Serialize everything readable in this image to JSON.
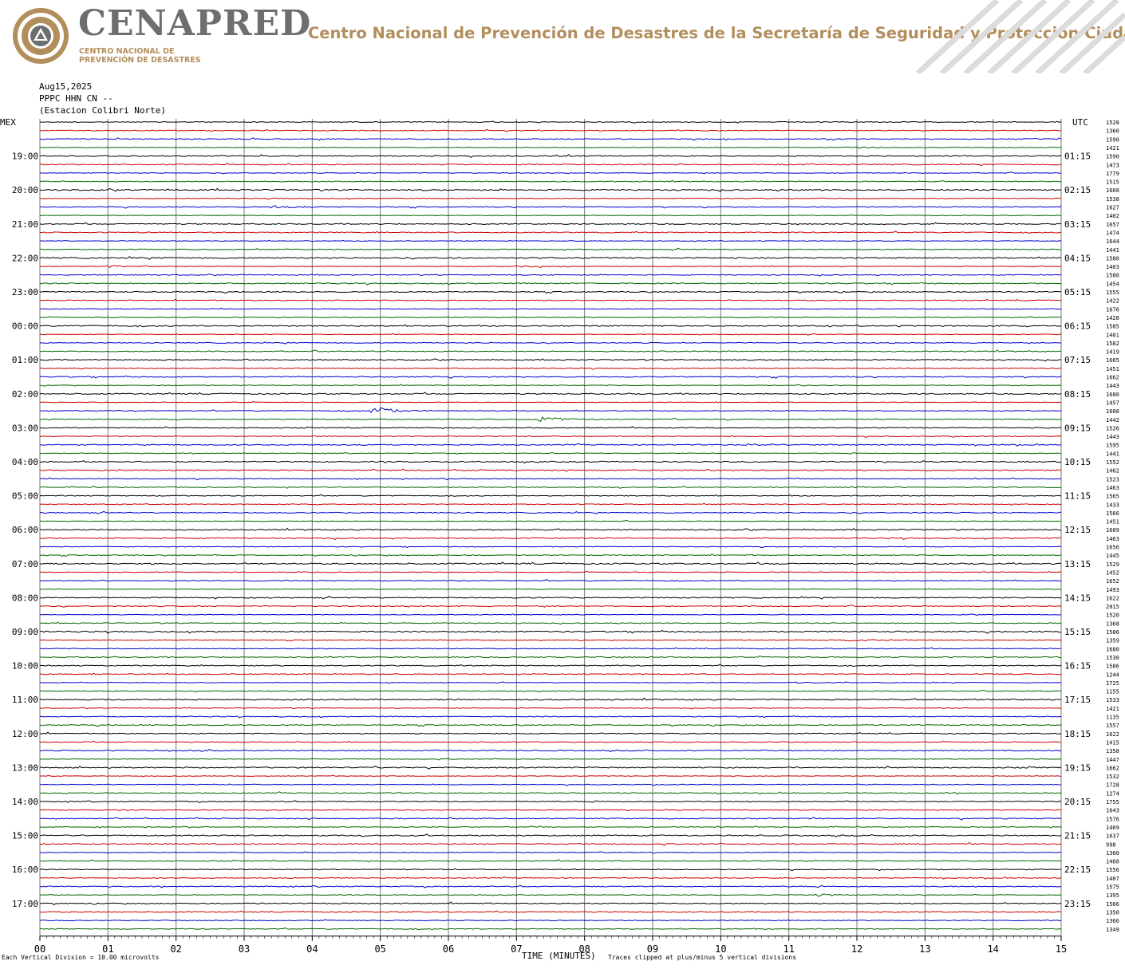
{
  "header": {
    "brand": "CENAPRED",
    "brand_sub_line1": "CENTRO NACIONAL DE",
    "brand_sub_line2": "PREVENCIÓN DE DESASTRES",
    "title": "Centro Nacional de Prevención de Desastres de la Secretaría de Seguridad y Protección Ciudadana",
    "colors": {
      "brand_gray": "#6d6e70",
      "gold": "#b38e5d"
    }
  },
  "station": {
    "date": "Aug15,2025",
    "channel": "PPPC HHN CN --",
    "name": "(Estacion Colibri Norte)"
  },
  "footer": {
    "scale": "Each Vertical Division =   10.00 microvolts",
    "xlabel": "TIME (MINUTES)",
    "clip_note": "Traces clipped at plus/minus 5 vertical divisions"
  },
  "chart_data": {
    "type": "line",
    "description": "helicorder",
    "left_axis_title": "MEX",
    "right_axis_title": "UTC",
    "xlabel": "TIME (MINUTES)",
    "xlim": [
      0,
      15
    ],
    "x_ticks": [
      "00",
      "01",
      "02",
      "03",
      "04",
      "05",
      "06",
      "07",
      "08",
      "09",
      "10",
      "11",
      "12",
      "13",
      "14",
      "15"
    ],
    "rows_per_hour": 4,
    "trace_colors": [
      "#000000",
      "#cc0000",
      "#0000cc",
      "#006600"
    ],
    "left_time_labels": [
      "19:00",
      "20:00",
      "21:00",
      "22:00",
      "23:00",
      "00:00",
      "01:00",
      "02:00",
      "03:00",
      "04:00",
      "05:00",
      "06:00",
      "07:00",
      "08:00",
      "09:00",
      "10:00",
      "11:00",
      "12:00",
      "13:00",
      "14:00",
      "15:00",
      "16:00",
      "17:00"
    ],
    "right_time_labels": [
      "01:15",
      "02:15",
      "03:15",
      "04:15",
      "05:15",
      "06:15",
      "07:15",
      "08:15",
      "09:15",
      "10:15",
      "11:15",
      "12:15",
      "13:15",
      "14:15",
      "15:15",
      "16:15",
      "17:15",
      "18:15",
      "19:15",
      "20:15",
      "21:15",
      "22:15",
      "23:15"
    ],
    "row_values": [
      "1528",
      "1360",
      "1590",
      "1421",
      "1590",
      "1473",
      "1779",
      "1515",
      "1668",
      "1538",
      "1627",
      "1402",
      "1657",
      "1474",
      "1644",
      "1441",
      "1580",
      "1403",
      "1580",
      "1454",
      "1555",
      "1422",
      "1676",
      "1428",
      "1585",
      "1401",
      "1582",
      "1419",
      "1665",
      "1451",
      "1662",
      "1443",
      "1680",
      "1457",
      "1608",
      "1442",
      "1526",
      "1443",
      "1595",
      "1441",
      "1552",
      "1462",
      "1523",
      "1463",
      "1565",
      "1433",
      "1566",
      "1451",
      "1609",
      "1463",
      "1656",
      "1445",
      "1529",
      "1452",
      "1652",
      "1493",
      "1622",
      "2015",
      "1520",
      "1368",
      "1506",
      "1359",
      "1680",
      "1530",
      "1586",
      "1244",
      "1725",
      "1155",
      "1533",
      "1421",
      "1135",
      "1557",
      "1622",
      "1415",
      "1358",
      "1447",
      "1662",
      "1532",
      "1728",
      "1274",
      "1755",
      "1643",
      "1576",
      "1469",
      "1637",
      "998",
      "1360",
      "1468",
      "1556",
      "1407",
      "1575",
      "1395",
      "1566",
      "1350",
      "1366",
      "1349"
    ],
    "events": [
      {
        "row": 10,
        "minute": 3.4,
        "color_index": 2,
        "amp": 2.2,
        "dur": 1.0
      },
      {
        "row": 16,
        "minute": 5.95,
        "color_index": 0,
        "amp": 2.5,
        "dur": 0.5
      },
      {
        "row": 17,
        "minute": 1.0,
        "color_index": 1,
        "amp": 3.5,
        "dur": 0.4
      },
      {
        "row": 17,
        "minute": 7.0,
        "color_index": 1,
        "amp": 1.4,
        "dur": 1.6
      },
      {
        "row": 34,
        "minute": 4.9,
        "color_index": 2,
        "amp": 6.0,
        "dur": 0.9
      },
      {
        "row": 35,
        "minute": 7.35,
        "color_index": 3,
        "amp": 4.5,
        "dur": 0.8
      },
      {
        "row": 38,
        "minute": 10.4,
        "color_index": 2,
        "amp": 1.3,
        "dur": 1.2
      },
      {
        "row": 31,
        "minute": 11.1,
        "color_index": 3,
        "amp": 1.5,
        "dur": 0.6
      },
      {
        "row": 43,
        "minute": 11.9,
        "color_index": 3,
        "amp": 1.6,
        "dur": 0.4
      },
      {
        "row": 74,
        "minute": 1.9,
        "color_index": 2,
        "amp": 1.3,
        "dur": 0.8
      },
      {
        "row": 91,
        "minute": 11.4,
        "color_index": 3,
        "amp": 2.5,
        "dur": 0.5
      },
      {
        "row": 66,
        "minute": 11.0,
        "color_index": 2,
        "amp": 1.6,
        "dur": 1.2
      },
      {
        "row": 61,
        "minute": 11.8,
        "color_index": 1,
        "amp": 1.4,
        "dur": 1.5
      },
      {
        "row": 3,
        "minute": 12.0,
        "color_index": 3,
        "amp": 1.4,
        "dur": 0.8
      }
    ]
  }
}
